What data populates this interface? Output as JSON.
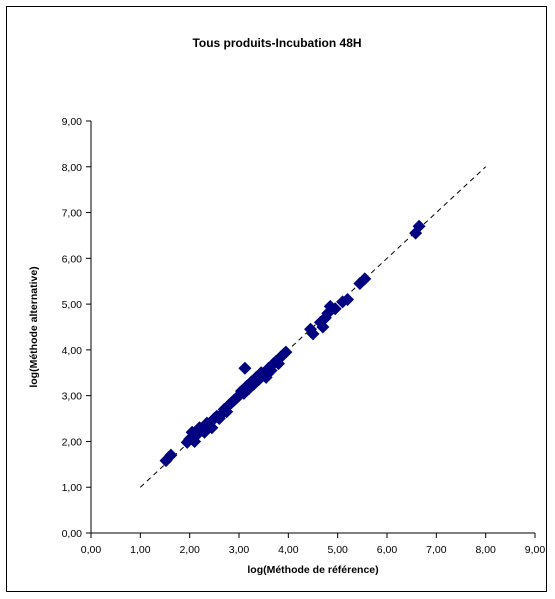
{
  "chart_data": {
    "type": "scatter",
    "title": "Tous produits-Incubation 48H",
    "xlabel": "log(Méthode de référence)",
    "ylabel": "log(Méthode alternative)",
    "xlim": [
      0,
      9
    ],
    "ylim": [
      0,
      9
    ],
    "x_ticks": [
      "0,00",
      "1,00",
      "2,00",
      "3,00",
      "4,00",
      "5,00",
      "6,00",
      "7,00",
      "8,00",
      "9,00"
    ],
    "y_ticks": [
      "0,00",
      "1,00",
      "2,00",
      "3,00",
      "4,00",
      "5,00",
      "6,00",
      "7,00",
      "8,00",
      "9,00"
    ],
    "grid": false,
    "legend": "none",
    "marker": "diamond",
    "marker_color": "#000080",
    "reference_line": {
      "style": "dashed",
      "color": "#000000",
      "x": [
        1.0,
        8.0
      ],
      "y": [
        1.0,
        8.0
      ]
    },
    "series": [
      {
        "points": [
          [
            1.52,
            1.58
          ],
          [
            1.62,
            1.7
          ],
          [
            1.95,
            1.98
          ],
          [
            2.0,
            2.05
          ],
          [
            2.05,
            2.2
          ],
          [
            2.1,
            2.0
          ],
          [
            2.15,
            2.15
          ],
          [
            2.2,
            2.3
          ],
          [
            2.25,
            2.25
          ],
          [
            2.3,
            2.2
          ],
          [
            2.35,
            2.4
          ],
          [
            2.4,
            2.35
          ],
          [
            2.45,
            2.3
          ],
          [
            2.5,
            2.5
          ],
          [
            2.55,
            2.55
          ],
          [
            2.6,
            2.5
          ],
          [
            2.65,
            2.6
          ],
          [
            2.7,
            2.7
          ],
          [
            2.75,
            2.65
          ],
          [
            2.8,
            2.8
          ],
          [
            2.85,
            2.85
          ],
          [
            2.9,
            2.9
          ],
          [
            2.95,
            2.95
          ],
          [
            3.0,
            3.0
          ],
          [
            3.05,
            3.1
          ],
          [
            3.1,
            3.05
          ],
          [
            3.12,
            3.6
          ],
          [
            3.15,
            3.2
          ],
          [
            3.2,
            3.15
          ],
          [
            3.25,
            3.3
          ],
          [
            3.3,
            3.25
          ],
          [
            3.35,
            3.4
          ],
          [
            3.4,
            3.35
          ],
          [
            3.45,
            3.5
          ],
          [
            3.5,
            3.45
          ],
          [
            3.55,
            3.4
          ],
          [
            3.6,
            3.6
          ],
          [
            3.65,
            3.55
          ],
          [
            3.7,
            3.7
          ],
          [
            3.75,
            3.75
          ],
          [
            3.8,
            3.7
          ],
          [
            3.85,
            3.85
          ],
          [
            3.9,
            3.9
          ],
          [
            3.95,
            3.95
          ],
          [
            4.45,
            4.45
          ],
          [
            4.5,
            4.35
          ],
          [
            4.65,
            4.6
          ],
          [
            4.7,
            4.5
          ],
          [
            4.75,
            4.7
          ],
          [
            4.8,
            4.8
          ],
          [
            4.85,
            4.95
          ],
          [
            4.95,
            4.9
          ],
          [
            5.1,
            5.05
          ],
          [
            5.2,
            5.1
          ],
          [
            5.45,
            5.45
          ],
          [
            5.55,
            5.55
          ],
          [
            6.58,
            6.55
          ],
          [
            6.65,
            6.7
          ]
        ]
      }
    ]
  }
}
